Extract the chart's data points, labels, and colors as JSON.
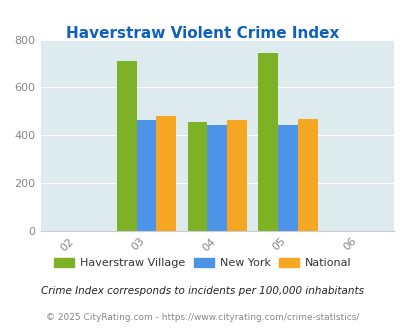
{
  "title": "Haverstraw Violent Crime Index",
  "bar_years": [
    2003,
    2004,
    2005
  ],
  "haverstraw": [
    712,
    455,
    745
  ],
  "new_york": [
    465,
    445,
    443
  ],
  "national": [
    480,
    465,
    470
  ],
  "color_haverstraw": "#7db227",
  "color_new_york": "#4d94e8",
  "color_national": "#f5a623",
  "bg_color": "#ddeaee",
  "ylim": [
    0,
    800
  ],
  "yticks": [
    0,
    200,
    400,
    600,
    800
  ],
  "title_color": "#1060c0",
  "legend_labels": [
    "Haverstraw Village",
    "New York",
    "National"
  ],
  "footnote1": "Crime Index corresponds to incidents per 100,000 inhabitants",
  "footnote2": "© 2025 CityRating.com - https://www.cityrating.com/crime-statistics/",
  "bar_width": 0.28,
  "fig_bg": "#ffffff",
  "tick_positions": [
    -1,
    0,
    1,
    2,
    3
  ],
  "tick_labels": [
    "02",
    "03",
    "04",
    "05",
    "06"
  ]
}
